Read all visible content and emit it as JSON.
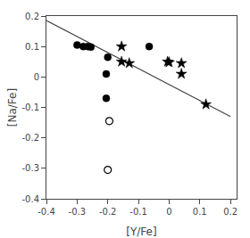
{
  "chart_data": {
    "type": "scatter",
    "xlabel": "[Y/Fe]",
    "ylabel": "[Na/Fe]",
    "series": [
      {
        "type": "line",
        "line_style": "solid",
        "color": "#444444",
        "x": [
          -0.4,
          0.2
        ],
        "values": [
          0.185,
          -0.13
        ]
      },
      {
        "type": "scatter",
        "marker": "circle",
        "color": "#000000",
        "x": [
          -0.3,
          -0.28,
          -0.265,
          -0.255,
          -0.2,
          -0.205,
          -0.205,
          -0.065
        ],
        "values": [
          0.105,
          0.1,
          0.1,
          0.098,
          0.065,
          0.01,
          -0.07,
          0.1
        ]
      },
      {
        "type": "scatter",
        "marker": "star",
        "color": "#000000",
        "x": [
          -0.155,
          -0.155,
          -0.13,
          -0.005,
          0.0,
          0.04,
          0.04,
          0.12
        ],
        "values": [
          0.1,
          0.05,
          0.045,
          0.05,
          0.048,
          0.045,
          0.01,
          -0.09
        ]
      },
      {
        "type": "scatter",
        "marker": "circle-open",
        "color": "#000000",
        "x": [
          -0.195,
          -0.2
        ],
        "values": [
          -0.145,
          -0.305
        ]
      }
    ],
    "xlim": [
      -0.4,
      0.22
    ],
    "ylim": [
      -0.4,
      0.2
    ],
    "xticks": [
      -0.4,
      -0.3,
      -0.2,
      -0.1,
      0,
      0.1,
      0.2
    ],
    "yticks": [
      -0.4,
      -0.3,
      -0.2,
      -0.1,
      0,
      0.1,
      0.2
    ],
    "grid": false
  }
}
